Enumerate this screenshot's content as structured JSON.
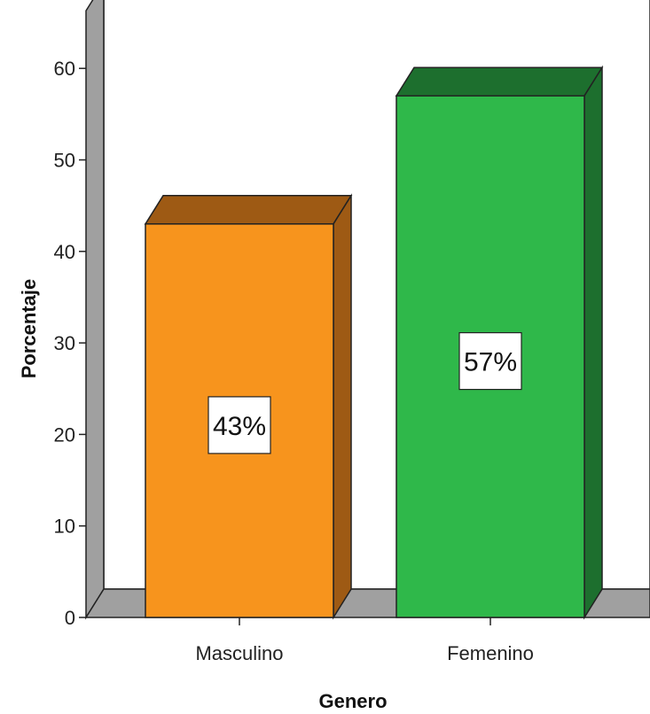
{
  "chart_data": {
    "type": "bar",
    "style": "3d",
    "categories": [
      "Masculino",
      "Femenino"
    ],
    "values": [
      43,
      57
    ],
    "data_labels": [
      "43%",
      "57%"
    ],
    "colors": {
      "Masculino": {
        "front": "#f7941d",
        "side": "#9e5a14",
        "top": "#9e5a14"
      },
      "Femenino": {
        "front": "#2fb84a",
        "side": "#1d6f2e",
        "top": "#1d6f2e"
      },
      "wall": "#ffffff",
      "floor": "#a0a0a0",
      "outline": "#222222"
    },
    "title": "",
    "xlabel": "Genero",
    "ylabel": "Porcentaje",
    "ylim": [
      0,
      60
    ],
    "yticks": [
      0,
      10,
      20,
      30,
      40,
      50,
      60
    ],
    "grid": false,
    "legend": "none"
  }
}
